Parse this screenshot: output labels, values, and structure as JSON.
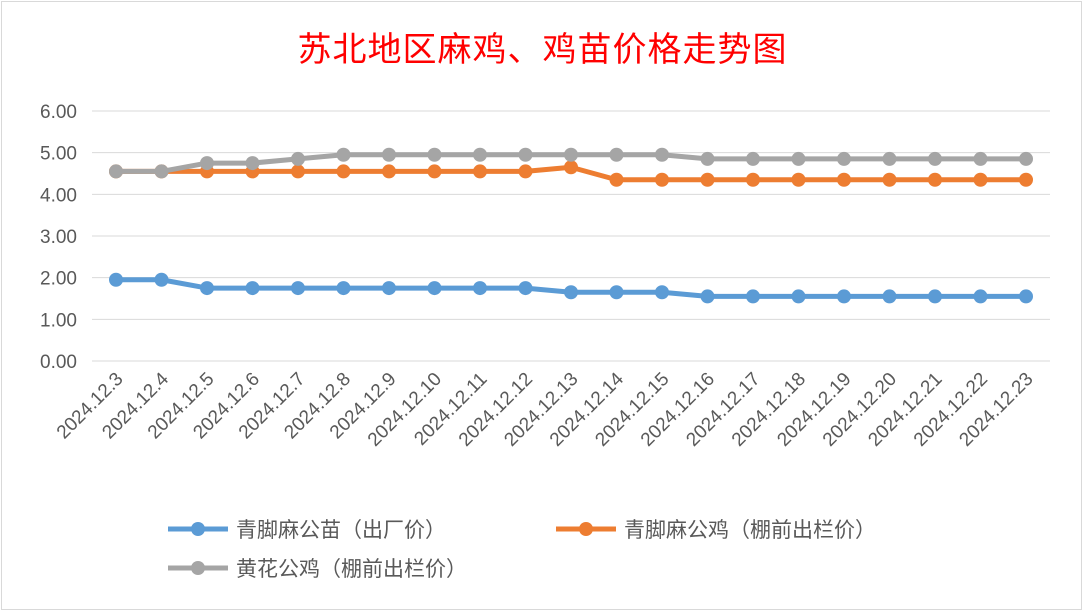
{
  "chart_data": {
    "type": "line",
    "title": "苏北地区麻鸡、鸡苗价格走势图",
    "xlabel": "",
    "ylabel": "",
    "ylim": [
      0,
      6
    ],
    "yticks": [
      "0.00",
      "1.00",
      "2.00",
      "3.00",
      "4.00",
      "5.00",
      "6.00"
    ],
    "grid": true,
    "legend_position": "bottom",
    "categories": [
      "2024.12.3",
      "2024.12.4",
      "2024.12.5",
      "2024.12.6",
      "2024.12.7",
      "2024.12.8",
      "2024.12.9",
      "2024.12.10",
      "2024.12.11",
      "2024.12.12",
      "2024.12.13",
      "2024.12.14",
      "2024.12.15",
      "2024.12.16",
      "2024.12.17",
      "2024.12.18",
      "2024.12.19",
      "2024.12.20",
      "2024.12.21",
      "2024.12.22",
      "2024.12.23"
    ],
    "series": [
      {
        "name": "青脚麻公苗（出厂价）",
        "color": "#5b9bd5",
        "values": [
          1.95,
          1.95,
          1.75,
          1.75,
          1.75,
          1.75,
          1.75,
          1.75,
          1.75,
          1.75,
          1.65,
          1.65,
          1.65,
          1.55,
          1.55,
          1.55,
          1.55,
          1.55,
          1.55,
          1.55,
          1.55
        ]
      },
      {
        "name": "青脚麻公鸡（棚前出栏价）",
        "color": "#ed7d31",
        "values": [
          4.55,
          4.55,
          4.55,
          4.55,
          4.55,
          4.55,
          4.55,
          4.55,
          4.55,
          4.55,
          4.65,
          4.35,
          4.35,
          4.35,
          4.35,
          4.35,
          4.35,
          4.35,
          4.35,
          4.35,
          4.35
        ]
      },
      {
        "name": "黄花公鸡（棚前出栏价）",
        "color": "#a5a5a5",
        "values": [
          4.55,
          4.55,
          4.75,
          4.75,
          4.85,
          4.95,
          4.95,
          4.95,
          4.95,
          4.95,
          4.95,
          4.95,
          4.95,
          4.85,
          4.85,
          4.85,
          4.85,
          4.85,
          4.85,
          4.85,
          4.85
        ]
      }
    ]
  }
}
